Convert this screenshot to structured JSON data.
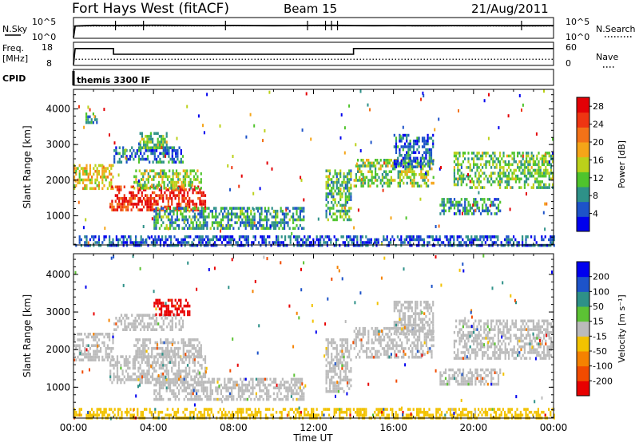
{
  "header": {
    "title": "Fort Hays West (fitACF)",
    "beam": "Beam 15",
    "date": "21/Aug/2011"
  },
  "top_panels": {
    "nsky_label": "N.Sky",
    "nsearch_label": "N.Search",
    "noise_ticks_left": [
      "10^5",
      "10^0"
    ],
    "noise_ticks_right": [
      "10^5",
      "10^0"
    ],
    "freq_label_1": "Freq.",
    "freq_label_2": "[MHz]",
    "freq_ticks": [
      "18",
      "8"
    ],
    "nave_label": "Nave",
    "nave_ticks": [
      "60",
      "0"
    ],
    "cpid_label": "CPID",
    "cpid_value": "themis 3300 IF"
  },
  "chart_data": [
    {
      "type": "line",
      "title": "",
      "series": [
        {
          "name": "N.Sky",
          "x": [
            "00:00",
            "00:05",
            "01:00",
            "02:00",
            "03:00",
            "04:00",
            "05:00",
            "06:00",
            "07:00",
            "08:00",
            "09:00",
            "10:00",
            "11:00",
            "12:00",
            "13:00",
            "14:00",
            "15:00",
            "16:00",
            "17:00",
            "18:00",
            "19:00",
            "20:00",
            "21:00",
            "22:00",
            "23:00",
            "24:00"
          ],
          "y": [
            1,
            1000,
            1500,
            1400,
            1500,
            1600,
            1500,
            1400,
            1300,
            1400,
            1300,
            1200,
            1300,
            1400,
            1500,
            1300,
            1200,
            1300,
            1200,
            1200,
            1300,
            1200,
            1300,
            1200,
            1200,
            1300
          ]
        },
        {
          "name": "N.Search",
          "x": [
            "00:00",
            "06:00",
            "12:00",
            "18:00",
            "24:00"
          ],
          "y": [
            900,
            1000,
            1100,
            1000,
            900
          ]
        }
      ],
      "ylim": [
        1,
        100000
      ],
      "log_scale": true
    },
    {
      "type": "line",
      "series": [
        {
          "name": "Freq.",
          "x": [
            "00:00",
            "00:05",
            "02:00",
            "02:00",
            "14:00",
            "14:00",
            "24:00"
          ],
          "y": [
            8,
            15.5,
            15.5,
            12.8,
            12.8,
            15.5,
            15.5
          ]
        },
        {
          "name": "Nave",
          "x": [
            "00:00",
            "24:00"
          ],
          "y": [
            15,
            15
          ]
        }
      ],
      "ylim": [
        8,
        18
      ],
      "ylim_right": [
        0,
        60
      ]
    },
    {
      "type": "heatmap",
      "quantity": "Power [dB]",
      "xlabel": "",
      "ylabel": "Slant Range [km]",
      "xlim": [
        "00:00",
        "24:00"
      ],
      "ylim": [
        180,
        4550
      ],
      "yticks": [
        1000,
        2000,
        3000,
        4000
      ],
      "colorbar": {
        "label": "Power [dB]",
        "ticks": [
          4,
          8,
          12,
          16,
          20,
          24,
          28
        ],
        "range": [
          0,
          30
        ],
        "colors": [
          "#0000ee",
          "#1d53c9",
          "#2e9188",
          "#4fc42c",
          "#bbd11a",
          "#f5a518",
          "#f37218",
          "#ee3512",
          "#e30006"
        ]
      },
      "regions": [
        {
          "t0": 0.0,
          "t1": 2.0,
          "r0": 1750,
          "r1": 2450,
          "v": 16
        },
        {
          "t0": 0.6,
          "t1": 1.2,
          "r0": 3650,
          "r1": 3900,
          "v": 8
        },
        {
          "t0": 1.8,
          "t1": 6.6,
          "r0": 1150,
          "r1": 1850,
          "v": 26
        },
        {
          "t0": 3.0,
          "t1": 6.4,
          "r0": 1800,
          "r1": 2300,
          "v": 14
        },
        {
          "t0": 2.0,
          "t1": 5.5,
          "r0": 2500,
          "r1": 2950,
          "v": 6
        },
        {
          "t0": 3.3,
          "t1": 4.7,
          "r0": 2900,
          "r1": 3350,
          "v": 12
        },
        {
          "t0": 4.0,
          "t1": 11.5,
          "r0": 650,
          "r1": 1250,
          "v": 9
        },
        {
          "t0": 0.0,
          "t1": 24.0,
          "r0": 200,
          "r1": 450,
          "v": 5
        },
        {
          "t0": 12.6,
          "t1": 13.9,
          "r0": 900,
          "r1": 2300,
          "v": 11
        },
        {
          "t0": 14.0,
          "t1": 18.0,
          "r0": 1800,
          "r1": 2600,
          "v": 13
        },
        {
          "t0": 16.0,
          "t1": 18.0,
          "r0": 2400,
          "r1": 3300,
          "v": 6
        },
        {
          "t0": 19.0,
          "t1": 24.0,
          "r0": 1800,
          "r1": 2800,
          "v": 12
        },
        {
          "t0": 18.3,
          "t1": 21.3,
          "r0": 1050,
          "r1": 1500,
          "v": 8
        }
      ]
    },
    {
      "type": "heatmap",
      "quantity": "Velocity [m s^-1]",
      "xlabel": "Time UT",
      "ylabel": "Slant Range [km]",
      "xlim": [
        "00:00",
        "24:00"
      ],
      "ylim": [
        180,
        4550
      ],
      "yticks": [
        1000,
        2000,
        3000,
        4000
      ],
      "xticks": [
        "00:00",
        "04:00",
        "08:00",
        "12:00",
        "16:00",
        "20:00",
        "00:00"
      ],
      "colorbar": {
        "label": "Velocity [m s⁻¹]",
        "ticks": [
          200,
          100,
          50,
          15,
          -15,
          -50,
          -100,
          -200
        ],
        "range": [
          -250,
          250
        ],
        "colors": [
          "#e80000",
          "#f14b00",
          "#f58200",
          "#f2c200",
          "#bbbbbb",
          "#5cc234",
          "#2e9188",
          "#1d53c9",
          "#0000ee"
        ]
      },
      "regions": [
        {
          "t0": 0.0,
          "t1": 2.0,
          "r0": 1750,
          "r1": 2450,
          "v": 0
        },
        {
          "t0": 1.8,
          "t1": 6.6,
          "r0": 1150,
          "r1": 1850,
          "v": 0
        },
        {
          "t0": 3.0,
          "t1": 6.4,
          "r0": 1800,
          "r1": 2300,
          "v": 0
        },
        {
          "t0": 2.0,
          "t1": 5.5,
          "r0": 2500,
          "r1": 2950,
          "v": 5
        },
        {
          "t0": 4.0,
          "t1": 5.8,
          "r0": 2900,
          "r1": 3350,
          "v": -230
        },
        {
          "t0": 4.0,
          "t1": 11.5,
          "r0": 650,
          "r1": 1250,
          "v": 0
        },
        {
          "t0": 0.0,
          "t1": 24.0,
          "r0": 200,
          "r1": 450,
          "v": -60
        },
        {
          "t0": 12.6,
          "t1": 13.9,
          "r0": 900,
          "r1": 2300,
          "v": 0
        },
        {
          "t0": 14.0,
          "t1": 18.0,
          "r0": 1800,
          "r1": 2600,
          "v": 0
        },
        {
          "t0": 16.0,
          "t1": 18.0,
          "r0": 2400,
          "r1": 3300,
          "v": 0
        },
        {
          "t0": 19.0,
          "t1": 24.0,
          "r0": 1800,
          "r1": 2800,
          "v": 5
        },
        {
          "t0": 18.3,
          "t1": 21.3,
          "r0": 1050,
          "r1": 1500,
          "v": 0
        }
      ]
    }
  ]
}
